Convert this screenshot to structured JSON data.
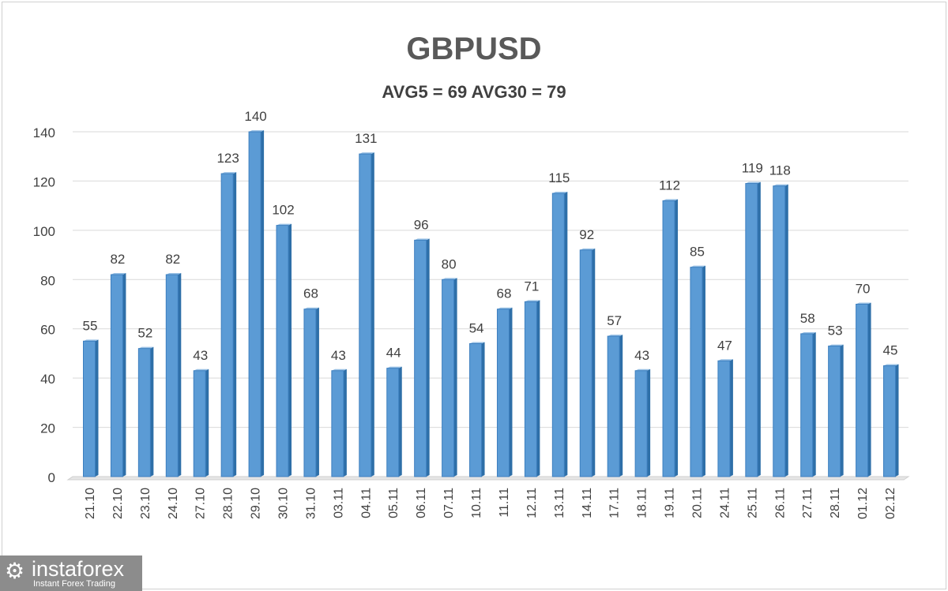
{
  "chart_data": {
    "type": "bar",
    "title": "GBPUSD",
    "subtitle": "AVG5 = 69 AVG30 = 79",
    "xlabel": "",
    "ylabel": "",
    "ylim": [
      0,
      140
    ],
    "yticks": [
      0,
      20,
      40,
      60,
      80,
      100,
      120,
      140
    ],
    "grid": true,
    "categories": [
      "21.10",
      "22.10",
      "23.10",
      "24.10",
      "27.10",
      "28.10",
      "29.10",
      "30.10",
      "31.10",
      "03.11",
      "04.11",
      "05.11",
      "06.11",
      "07.11",
      "10.11",
      "11.11",
      "12.11",
      "13.11",
      "14.11",
      "17.11",
      "18.11",
      "19.11",
      "20.11",
      "24.11",
      "25.11",
      "26.11",
      "27.11",
      "28.11",
      "01.12",
      "02.12"
    ],
    "values": [
      55,
      82,
      52,
      82,
      43,
      123,
      140,
      102,
      68,
      43,
      131,
      44,
      96,
      80,
      54,
      68,
      71,
      115,
      92,
      57,
      43,
      112,
      85,
      47,
      119,
      118,
      58,
      53,
      70,
      45
    ],
    "bar_color": "#5b9bd5"
  },
  "watermark": {
    "name": "instaforex",
    "tagline": "Instant Forex Trading"
  }
}
